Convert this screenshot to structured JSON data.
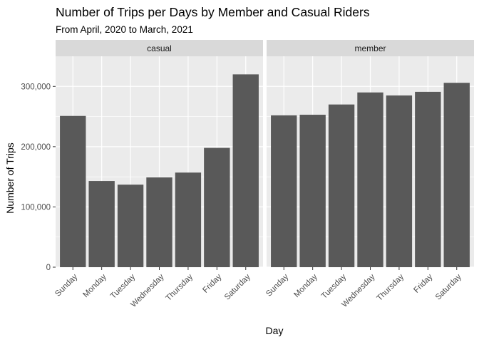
{
  "chart_data": {
    "type": "bar",
    "title": "Number of Trips per Days by Member and Casual Riders",
    "subtitle": "From April, 2020 to March, 2021",
    "xlabel": "Day",
    "ylabel": "Number of Trips",
    "ylim": [
      0,
      350000
    ],
    "yticks": [
      0,
      100000,
      200000,
      300000
    ],
    "ytick_labels": [
      "0",
      "100,000",
      "200,000",
      "300,000"
    ],
    "categories": [
      "Sunday",
      "Monday",
      "Tuesday",
      "Wednesday",
      "Thursday",
      "Friday",
      "Saturday"
    ],
    "facets": [
      {
        "name": "casual",
        "values": [
          251000,
          143000,
          137000,
          149000,
          157000,
          198000,
          320000
        ]
      },
      {
        "name": "member",
        "values": [
          252000,
          253000,
          270000,
          290000,
          285000,
          291000,
          306000
        ]
      }
    ],
    "bar_color": "#595959",
    "panel_color": "#ebebeb",
    "strip_color": "#d9d9d9",
    "grid_color": "#ffffff"
  }
}
